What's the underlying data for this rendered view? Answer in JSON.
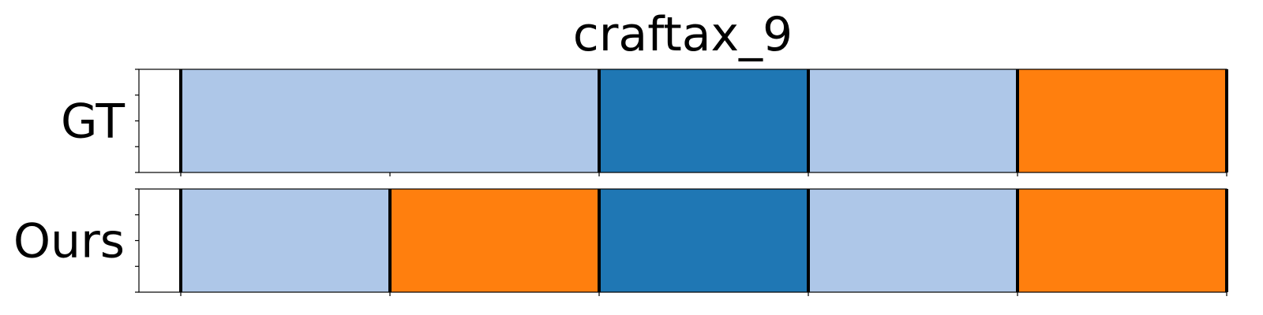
{
  "chart_data": {
    "type": "segmentation",
    "title": "craftax_9",
    "x_range": [
      0,
      13
    ],
    "tick_positions": [
      0.5,
      3.0,
      5.5,
      8.0,
      10.5,
      13.0
    ],
    "colors": {
      "light-blue": "#aec7e8",
      "blue": "#1f77b4",
      "orange": "#ff7f0e",
      "boundary": "#000000"
    },
    "rows": [
      {
        "label": "GT",
        "segments": [
          {
            "start": 0.5,
            "end": 5.5,
            "color": "#aec7e8"
          },
          {
            "start": 5.5,
            "end": 8.0,
            "color": "#1f77b4"
          },
          {
            "start": 8.0,
            "end": 10.5,
            "color": "#aec7e8"
          },
          {
            "start": 10.5,
            "end": 13.0,
            "color": "#ff7f0e"
          }
        ]
      },
      {
        "label": "Ours",
        "segments": [
          {
            "start": 0.5,
            "end": 3.0,
            "color": "#aec7e8"
          },
          {
            "start": 3.0,
            "end": 5.5,
            "color": "#ff7f0e"
          },
          {
            "start": 5.5,
            "end": 8.0,
            "color": "#1f77b4"
          },
          {
            "start": 8.0,
            "end": 10.5,
            "color": "#aec7e8"
          },
          {
            "start": 10.5,
            "end": 13.0,
            "color": "#ff7f0e"
          }
        ]
      }
    ]
  }
}
